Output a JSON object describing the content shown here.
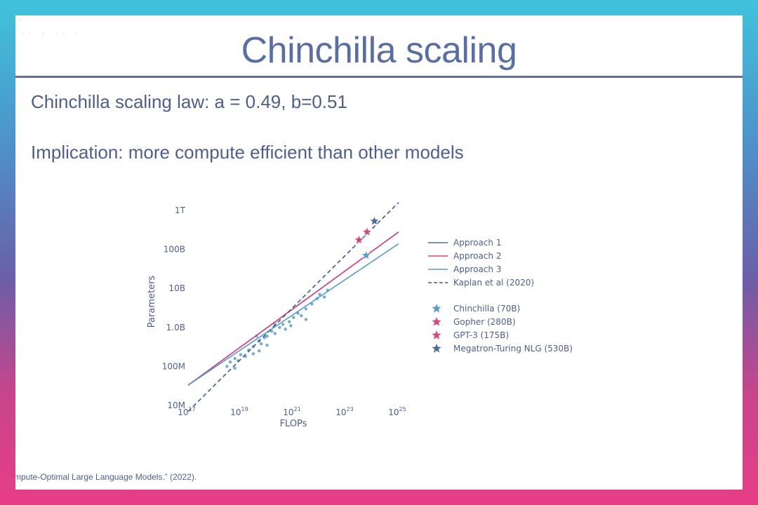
{
  "slide": {
    "title": "Chinchilla scaling",
    "line1": "Chinchilla scaling law: a = 0.49, b=0.51",
    "line2": "Implication: more compute efficient than other models",
    "citation": "mpute-Optimal Large Language Models.” (2022)."
  },
  "colors": {
    "text": "#4e5f8f",
    "approach1": "#4d6b9a",
    "approach2": "#d6457f",
    "approach3": "#5b9cc7",
    "kaplan": "#3f5a8c",
    "scatter": "#5b9cc7"
  },
  "chart_data": {
    "type": "line",
    "xlabel": "FLOPs",
    "ylabel": "Parameters",
    "x_scale": "log",
    "y_scale": "log",
    "xlim": [
      1e+17,
      1e+25
    ],
    "ylim": [
      10000000.0,
      1000000000000.0
    ],
    "x_ticks": [
      {
        "value": 1e+17,
        "label": "10",
        "exp": "17"
      },
      {
        "value": 1e+19,
        "label": "10",
        "exp": "19"
      },
      {
        "value": 1e+21,
        "label": "10",
        "exp": "21"
      },
      {
        "value": 1e+23,
        "label": "10",
        "exp": "23"
      },
      {
        "value": 1e+25,
        "label": "10",
        "exp": "25"
      }
    ],
    "y_ticks": [
      {
        "value": 10000000.0,
        "label": "10M"
      },
      {
        "value": 100000000.0,
        "label": "100M"
      },
      {
        "value": 1000000000.0,
        "label": "1.0B"
      },
      {
        "value": 10000000000.0,
        "label": "10B"
      },
      {
        "value": 100000000000.0,
        "label": "100B"
      },
      {
        "value": 1000000000000.0,
        "label": "1T"
      }
    ],
    "series": [
      {
        "name": "Approach 1",
        "style": "solid",
        "color": "#4d6b9a",
        "points": [
          [
            1e+17,
            33000000.0
          ],
          [
            1e+25,
            280000000000.0
          ]
        ]
      },
      {
        "name": "Approach 2",
        "style": "solid",
        "color": "#d6457f",
        "points": [
          [
            1e+17,
            33000000.0
          ],
          [
            1e+25,
            280000000000.0
          ]
        ]
      },
      {
        "name": "Approach 3",
        "style": "solid",
        "color": "#5b9cc7",
        "points": [
          [
            1e+17,
            33000000.0
          ],
          [
            1e+25,
            140000000000.0
          ]
        ]
      },
      {
        "name": "Kaplan et al (2020)",
        "style": "dashed",
        "color": "#3f5a8c",
        "points": [
          [
            1e+17,
            7000000.0
          ],
          [
            1e+25,
            1600000000000.0
          ]
        ]
      }
    ],
    "models": [
      {
        "name": "Chinchilla (70B)",
        "flops": 5.8e+23,
        "params": 70000000000.0,
        "color": "#5b9cc7"
      },
      {
        "name": "Gopher (280B)",
        "flops": 6.3e+23,
        "params": 280000000000.0,
        "color": "#d6457f"
      },
      {
        "name": "GPT-3 (175B)",
        "flops": 3.1e+23,
        "params": 175000000000.0,
        "color": "#d6457f"
      },
      {
        "name": "Megatron-Turing NLG (530B)",
        "flops": 1.2e+24,
        "params": 530000000000.0,
        "color": "#4d6b9a"
      }
    ],
    "scatter_points": [
      [
        3e+18,
        100000000.0
      ],
      [
        4e+18,
        130000000.0
      ],
      [
        6e+18,
        160000000.0
      ],
      [
        8e+18,
        140000000.0
      ],
      [
        1e+19,
        200000000.0
      ],
      [
        1.5e+19,
        180000000.0
      ],
      [
        2e+19,
        260000000.0
      ],
      [
        3e+19,
        320000000.0
      ],
      [
        3e+19,
        210000000.0
      ],
      [
        5e+19,
        450000000.0
      ],
      [
        6e+19,
        380000000.0
      ],
      [
        8e+19,
        550000000.0
      ],
      [
        1e+20,
        600000000.0
      ],
      [
        1.5e+20,
        800000000.0
      ],
      [
        2e+20,
        700000000.0
      ],
      [
        3e+20,
        1000000000.0
      ],
      [
        4e+20,
        1200000000.0
      ],
      [
        5e+20,
        900000000.0
      ],
      [
        7e+20,
        1400000000.0
      ],
      [
        1e+21,
        1800000000.0
      ],
      [
        1.5e+21,
        2300000000.0
      ],
      [
        2e+21,
        2000000000.0
      ],
      [
        3e+21,
        3000000000.0
      ],
      [
        5e+21,
        4000000000.0
      ],
      [
        8e+21,
        5500000000.0
      ],
      [
        1e+22,
        7000000000.0
      ],
      [
        1.5e+22,
        6000000000.0
      ],
      [
        2e+22,
        9000000000.0
      ],
      [
        5e+19,
        250000000.0
      ],
      [
        2e+20,
        1200000000.0
      ],
      [
        6e+18,
        90000000.0
      ],
      [
        4e+19,
        600000000.0
      ],
      [
        1e+20,
        350000000.0
      ],
      [
        8e+20,
        1100000000.0
      ],
      [
        3e+21,
        1600000000.0
      ]
    ],
    "legend": [
      {
        "label": "Approach 1",
        "kind": "line",
        "color": "#4d6b9a"
      },
      {
        "label": "Approach 2",
        "kind": "line",
        "color": "#d6457f"
      },
      {
        "label": "Approach 3",
        "kind": "line",
        "color": "#5b9cc7"
      },
      {
        "label": "Kaplan et al (2020)",
        "kind": "dashed",
        "color": "#3f5a8c"
      },
      {
        "label": "Chinchilla (70B)",
        "kind": "star",
        "color": "#5b9cc7"
      },
      {
        "label": "Gopher (280B)",
        "kind": "star",
        "color": "#d6457f"
      },
      {
        "label": "GPT-3 (175B)",
        "kind": "star",
        "color": "#d6457f"
      },
      {
        "label": "Megatron-Turing NLG (530B)",
        "kind": "star",
        "color": "#4d6b9a"
      }
    ],
    "legend_placement": "right"
  }
}
